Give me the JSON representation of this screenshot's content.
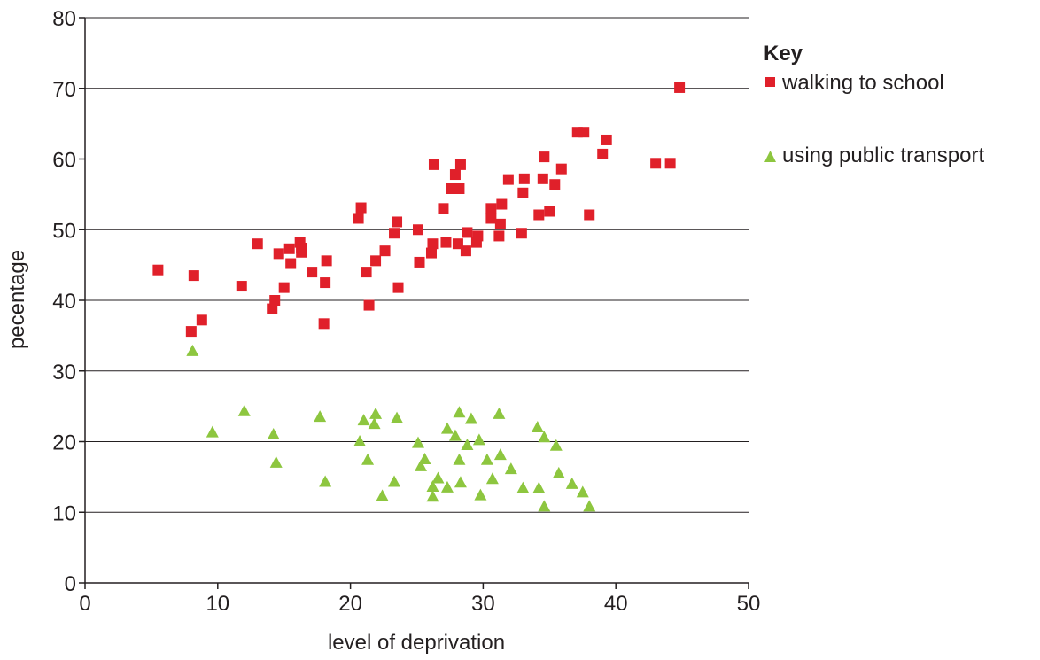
{
  "chart_data": {
    "type": "scatter",
    "xlabel": "level of deprivation",
    "ylabel": "pecentage",
    "xlim": [
      0,
      50
    ],
    "ylim": [
      0,
      80
    ],
    "x_ticks": [
      "0",
      "10",
      "20",
      "30",
      "40",
      "50"
    ],
    "y_ticks": [
      "0",
      "10",
      "20",
      "30",
      "40",
      "50",
      "60",
      "70",
      "80"
    ],
    "grid": "horizontal",
    "legend": {
      "title": "Key",
      "position": "right"
    },
    "series": [
      {
        "name": "walking to school",
        "marker": "square",
        "color": "#e0202a",
        "points": [
          [
            5.5,
            44.3
          ],
          [
            8.0,
            35.6
          ],
          [
            8.2,
            43.5
          ],
          [
            8.8,
            37.2
          ],
          [
            11.8,
            42.0
          ],
          [
            13.0,
            48.0
          ],
          [
            14.1,
            38.8
          ],
          [
            14.3,
            40.0
          ],
          [
            14.6,
            46.6
          ],
          [
            15.0,
            41.8
          ],
          [
            15.4,
            47.3
          ],
          [
            15.5,
            45.2
          ],
          [
            16.2,
            48.2
          ],
          [
            16.3,
            46.8
          ],
          [
            16.3,
            47.4
          ],
          [
            17.1,
            44.0
          ],
          [
            18.0,
            36.7
          ],
          [
            18.1,
            42.5
          ],
          [
            18.2,
            45.6
          ],
          [
            20.6,
            51.6
          ],
          [
            20.8,
            53.1
          ],
          [
            21.2,
            44.0
          ],
          [
            21.4,
            39.3
          ],
          [
            21.9,
            45.6
          ],
          [
            22.6,
            47.0
          ],
          [
            23.3,
            49.5
          ],
          [
            23.5,
            51.1
          ],
          [
            23.6,
            41.8
          ],
          [
            25.1,
            50.0
          ],
          [
            25.2,
            45.4
          ],
          [
            26.1,
            46.7
          ],
          [
            26.2,
            48.0
          ],
          [
            26.3,
            59.2
          ],
          [
            27.0,
            53.0
          ],
          [
            27.2,
            48.2
          ],
          [
            27.6,
            55.8
          ],
          [
            27.9,
            57.8
          ],
          [
            28.1,
            48.0
          ],
          [
            28.2,
            55.8
          ],
          [
            28.3,
            59.2
          ],
          [
            28.7,
            47.0
          ],
          [
            28.8,
            49.6
          ],
          [
            29.5,
            48.2
          ],
          [
            29.6,
            49.1
          ],
          [
            30.6,
            51.6
          ],
          [
            30.6,
            53.0
          ],
          [
            31.2,
            49.1
          ],
          [
            31.3,
            50.8
          ],
          [
            31.4,
            53.6
          ],
          [
            31.9,
            57.1
          ],
          [
            32.9,
            49.5
          ],
          [
            33.0,
            55.2
          ],
          [
            33.1,
            57.2
          ],
          [
            34.2,
            52.1
          ],
          [
            34.5,
            57.2
          ],
          [
            34.6,
            60.3
          ],
          [
            35.0,
            52.6
          ],
          [
            35.4,
            56.4
          ],
          [
            35.9,
            58.6
          ],
          [
            37.1,
            63.8
          ],
          [
            37.6,
            63.8
          ],
          [
            38.0,
            52.1
          ],
          [
            39.0,
            60.7
          ],
          [
            39.3,
            62.7
          ],
          [
            43.0,
            59.4
          ],
          [
            44.1,
            59.4
          ],
          [
            44.8,
            70.1
          ]
        ]
      },
      {
        "name": "using public transport",
        "marker": "triangle",
        "color": "#8dc63f",
        "points": [
          [
            8.1,
            32.8
          ],
          [
            9.6,
            21.3
          ],
          [
            12.0,
            24.3
          ],
          [
            14.2,
            21.0
          ],
          [
            14.4,
            17.0
          ],
          [
            17.7,
            23.5
          ],
          [
            18.1,
            14.3
          ],
          [
            20.7,
            20.0
          ],
          [
            21.0,
            23.0
          ],
          [
            21.3,
            17.4
          ],
          [
            21.8,
            22.5
          ],
          [
            21.9,
            23.9
          ],
          [
            22.4,
            12.3
          ],
          [
            23.3,
            14.3
          ],
          [
            23.5,
            23.3
          ],
          [
            25.1,
            19.8
          ],
          [
            25.3,
            16.5
          ],
          [
            25.6,
            17.5
          ],
          [
            26.2,
            13.6
          ],
          [
            26.2,
            12.2
          ],
          [
            26.6,
            14.8
          ],
          [
            27.3,
            21.8
          ],
          [
            27.3,
            13.5
          ],
          [
            27.9,
            20.8
          ],
          [
            28.2,
            17.4
          ],
          [
            28.2,
            24.1
          ],
          [
            28.3,
            14.2
          ],
          [
            28.8,
            19.5
          ],
          [
            29.1,
            23.2
          ],
          [
            29.7,
            20.2
          ],
          [
            29.8,
            12.4
          ],
          [
            30.3,
            17.4
          ],
          [
            30.7,
            14.7
          ],
          [
            31.2,
            23.9
          ],
          [
            31.3,
            18.1
          ],
          [
            32.1,
            16.1
          ],
          [
            33.0,
            13.4
          ],
          [
            34.1,
            22.0
          ],
          [
            34.2,
            13.4
          ],
          [
            34.6,
            20.6
          ],
          [
            34.6,
            10.8
          ],
          [
            35.5,
            19.4
          ],
          [
            35.7,
            15.5
          ],
          [
            36.7,
            14.0
          ],
          [
            37.5,
            12.8
          ],
          [
            38.0,
            10.8
          ]
        ]
      }
    ]
  }
}
